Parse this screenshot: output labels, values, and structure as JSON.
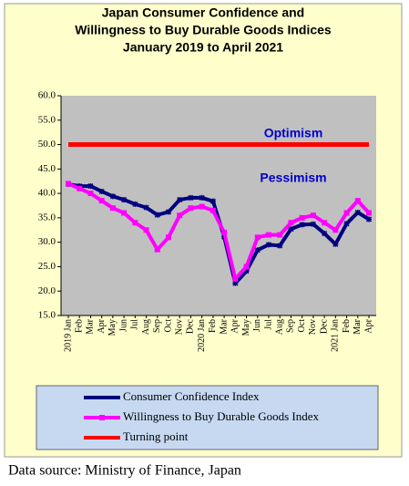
{
  "chart_data": {
    "type": "line",
    "title": [
      "Japan Consumer Confidence and",
      "Willingness to Buy Durable Goods Indices",
      "January 2019 to April 2021"
    ],
    "annotations": [
      "Optimism",
      "Pessimism"
    ],
    "source": "Data source: Ministry of Finance, Japan",
    "categories": [
      "2019 Jan",
      "Feb",
      "Mar",
      "Apr",
      "May",
      "Jun",
      "Jul",
      "Aug",
      "Sep",
      "Oct",
      "Nov",
      "Dec",
      "2020 Jan",
      "Feb",
      "Mar",
      "Apr",
      "May",
      "Jun",
      "Jul",
      "Aug",
      "Sep",
      "Oct",
      "Nov",
      "Dec",
      "2021 Jan",
      "Feb",
      "Mar",
      "Apr"
    ],
    "series": [
      {
        "name": "Consumer Confidence Index",
        "color": "#000080",
        "marker": "star",
        "values": [
          41.9,
          41.5,
          41.5,
          40.4,
          39.4,
          38.7,
          37.8,
          37.1,
          35.6,
          36.2,
          38.7,
          39.1,
          39.1,
          38.4,
          31.1,
          21.6,
          24.1,
          28.4,
          29.5,
          29.3,
          32.7,
          33.6,
          33.7,
          31.8,
          29.6,
          33.8,
          36.1,
          34.7
        ]
      },
      {
        "name": "Willingness to Buy Durable Goods Index",
        "color": "#ff00ff",
        "marker": "square",
        "values": [
          42,
          41,
          40,
          38.5,
          37,
          36,
          34,
          32.5,
          28.5,
          31,
          35.5,
          37,
          37.3,
          36.5,
          32,
          22.5,
          25,
          31,
          31.5,
          31.5,
          34,
          35,
          35.5,
          34,
          32.5,
          36,
          38.5,
          36
        ]
      },
      {
        "name": "Turning point",
        "color": "#ff0000",
        "marker": "none",
        "values": [
          50,
          50,
          50,
          50,
          50,
          50,
          50,
          50,
          50,
          50,
          50,
          50,
          50,
          50,
          50,
          50,
          50,
          50,
          50,
          50,
          50,
          50,
          50,
          50,
          50,
          50,
          50,
          50
        ]
      }
    ],
    "ylim": [
      15,
      60
    ],
    "yticks": [
      {
        "value": 15,
        "label": "15.0"
      },
      {
        "value": 20,
        "label": "20.0"
      },
      {
        "value": 25,
        "label": "25.0"
      },
      {
        "value": 30,
        "label": "30.0"
      },
      {
        "value": 35,
        "label": "35.0"
      },
      {
        "value": 40,
        "label": "40.0"
      },
      {
        "value": 45,
        "label": "45.0"
      },
      {
        "value": 50,
        "label": "50.0"
      },
      {
        "value": 55,
        "label": "55.0"
      },
      {
        "value": 60,
        "label": "60.0"
      }
    ],
    "grid": false
  }
}
